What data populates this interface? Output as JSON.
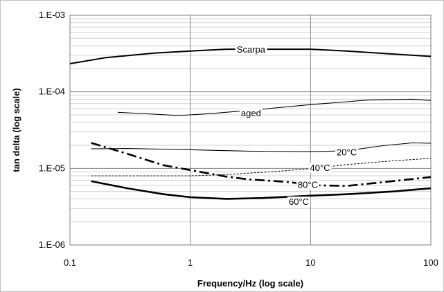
{
  "chart_data": {
    "type": "line",
    "title": "",
    "xlabel": "Frequency/Hz (log scale)",
    "ylabel": "tan delta (log scale)",
    "x_scale": "log",
    "y_scale": "log",
    "xlim": [
      0.1,
      100
    ],
    "ylim": [
      1e-06,
      0.001
    ],
    "x_ticks": [
      {
        "value": 0.1,
        "label": "0.1"
      },
      {
        "value": 1,
        "label": "1"
      },
      {
        "value": 10,
        "label": "10"
      },
      {
        "value": 100,
        "label": "100"
      }
    ],
    "y_ticks": [
      {
        "value": 1e-06,
        "label": "1.E-06"
      },
      {
        "value": 1e-05,
        "label": "1.E-05"
      },
      {
        "value": 0.0001,
        "label": "1.E-04"
      },
      {
        "value": 0.001,
        "label": "1.E-03"
      }
    ],
    "grid": "major and minor horizontal, major vertical",
    "legend": "none (inline labels)",
    "series": [
      {
        "name": "Scarpa",
        "style": "solid-medium",
        "label_at": [
          3.2,
          0.00036
        ],
        "points": [
          [
            0.1,
            0.000233
          ],
          [
            0.2,
            0.00028
          ],
          [
            0.5,
            0.00032
          ],
          [
            1,
            0.00034
          ],
          [
            2,
            0.00036
          ],
          [
            5,
            0.00036
          ],
          [
            10,
            0.00036
          ],
          [
            20,
            0.00034
          ],
          [
            50,
            0.00031
          ],
          [
            100,
            0.00029
          ]
        ]
      },
      {
        "name": "aged",
        "style": "solid-thin",
        "label_at": [
          3.2,
          5.3e-05
        ],
        "points": [
          [
            0.25,
            5.4e-05
          ],
          [
            0.5,
            5.1e-05
          ],
          [
            0.8,
            4.9e-05
          ],
          [
            1.5,
            5.2e-05
          ],
          [
            3,
            5.7e-05
          ],
          [
            10,
            6.8e-05
          ],
          [
            30,
            7.8e-05
          ],
          [
            70,
            8e-05
          ],
          [
            100,
            7.7e-05
          ]
        ]
      },
      {
        "name": "20°C",
        "style": "solid-thin",
        "label_at": [
          20,
          1.65e-05
        ],
        "points": [
          [
            0.15,
            1.8e-05
          ],
          [
            0.3,
            1.82e-05
          ],
          [
            1,
            1.75e-05
          ],
          [
            3,
            1.68e-05
          ],
          [
            10,
            1.65e-05
          ],
          [
            20,
            1.7e-05
          ],
          [
            40,
            1.98e-05
          ],
          [
            70,
            2.15e-05
          ],
          [
            100,
            2.13e-05
          ]
        ]
      },
      {
        "name": "40°C",
        "style": "dashed-thin",
        "label_at": [
          12,
          1.03e-05
        ],
        "points": [
          [
            0.15,
            8e-06
          ],
          [
            0.5,
            8e-06
          ],
          [
            1,
            8e-06
          ],
          [
            2,
            8.3e-06
          ],
          [
            5,
            9.1e-06
          ],
          [
            10,
            9.9e-06
          ],
          [
            20,
            1.12e-05
          ],
          [
            50,
            1.26e-05
          ],
          [
            100,
            1.35e-05
          ]
        ]
      },
      {
        "name": "80°C",
        "style": "dashdot-thick",
        "label_at": [
          9.5,
          6.2e-06
        ],
        "points": [
          [
            0.15,
            2.15e-05
          ],
          [
            0.3,
            1.55e-05
          ],
          [
            0.6,
            1.1e-05
          ],
          [
            1,
            9.5e-06
          ],
          [
            2,
            7.8e-06
          ],
          [
            3,
            7.2e-06
          ],
          [
            6,
            6.7e-06
          ],
          [
            12,
            6e-06
          ],
          [
            20,
            5.9e-06
          ],
          [
            40,
            6.6e-06
          ],
          [
            100,
            7.7e-06
          ]
        ]
      },
      {
        "name": "60°C",
        "style": "solid-thick",
        "label_at": [
          8,
          3.7e-06
        ],
        "points": [
          [
            0.15,
            6.8e-06
          ],
          [
            0.3,
            5.5e-06
          ],
          [
            0.6,
            4.6e-06
          ],
          [
            1,
            4.2e-06
          ],
          [
            2,
            4e-06
          ],
          [
            4,
            4.1e-06
          ],
          [
            10,
            4.4e-06
          ],
          [
            20,
            4.6e-06
          ],
          [
            50,
            5e-06
          ],
          [
            100,
            5.5e-06
          ]
        ]
      }
    ]
  }
}
